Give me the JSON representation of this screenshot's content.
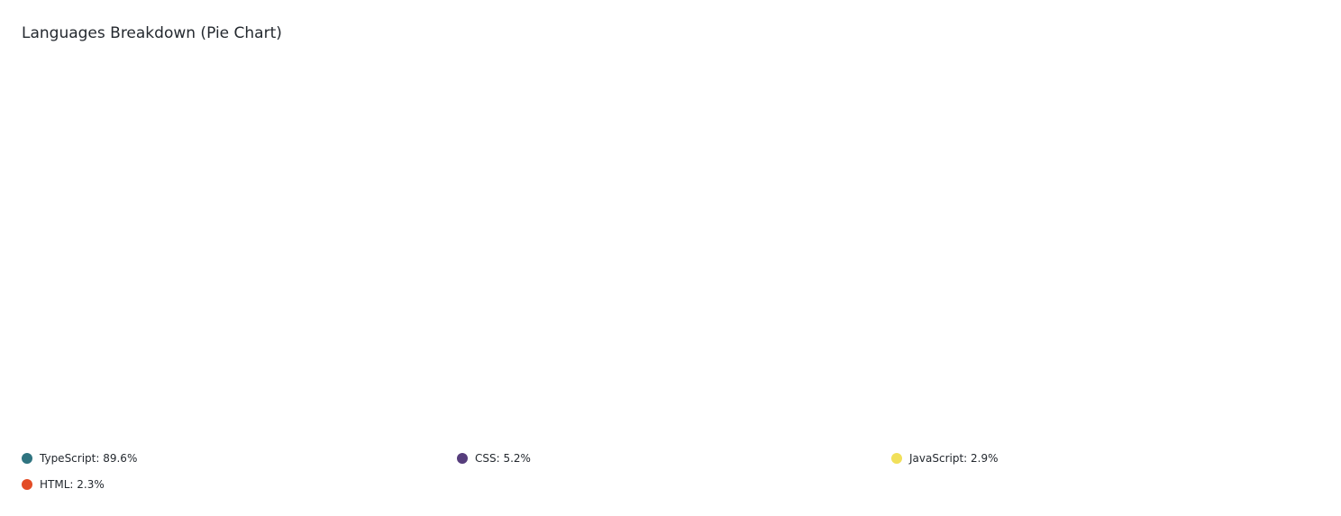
{
  "chart_data": {
    "type": "pie",
    "title": "Languages Breakdown (Pie Chart)",
    "legend_position": "bottom",
    "slices": [
      {
        "label": "TypeScript",
        "value": 89.6,
        "display": "TypeScript: 89.6%",
        "color": "#2f7480"
      },
      {
        "label": "CSS",
        "value": 5.2,
        "display": "CSS: 5.2%",
        "color": "#563d7c"
      },
      {
        "label": "JavaScript",
        "value": 2.9,
        "display": "JavaScript: 2.9%",
        "color": "#f1e05a"
      },
      {
        "label": "HTML",
        "value": 2.3,
        "display": "HTML: 2.3%",
        "color": "#e34c26"
      }
    ]
  }
}
